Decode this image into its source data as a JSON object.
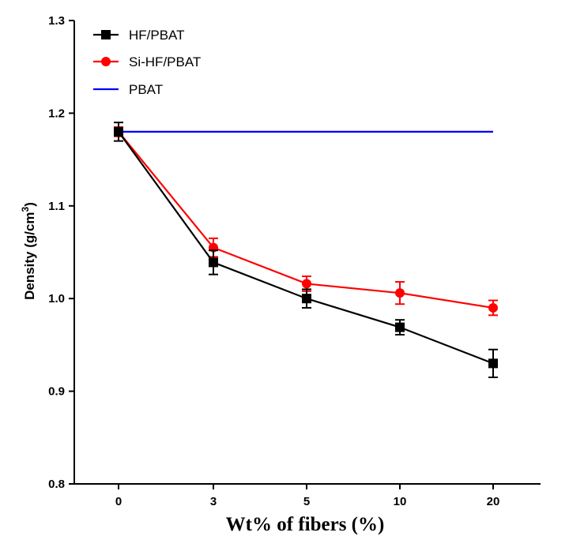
{
  "chart_data": {
    "type": "line",
    "title": "",
    "xlabel": "Wt% of fibers (%)",
    "ylabel": "Density (g/cm",
    "ylabel_sup": "3",
    "ylabel_close": ")",
    "ylim": [
      0.8,
      1.3
    ],
    "yticks": [
      "0.8",
      "0.9",
      "1.0",
      "1.1",
      "1.2",
      "1.3"
    ],
    "categories": [
      "0",
      "3",
      "5",
      "10",
      "20"
    ],
    "legend_position": "top-left",
    "series": [
      {
        "name": "HF/PBAT",
        "color": "#000000",
        "marker": "square",
        "values": [
          1.18,
          1.039,
          1.0,
          0.969,
          0.93
        ],
        "errors": [
          0.01,
          0.013,
          0.01,
          0.008,
          0.015
        ]
      },
      {
        "name": "Si-HF/PBAT",
        "color": "#ff0000",
        "marker": "circle",
        "values": [
          1.18,
          1.055,
          1.016,
          1.006,
          0.99
        ],
        "errors": [
          0.005,
          0.01,
          0.008,
          0.012,
          0.008
        ]
      },
      {
        "name": "PBAT",
        "color": "#0000ff",
        "marker": "none",
        "values": [
          1.18,
          1.18,
          1.18,
          1.18,
          1.18
        ]
      }
    ]
  }
}
